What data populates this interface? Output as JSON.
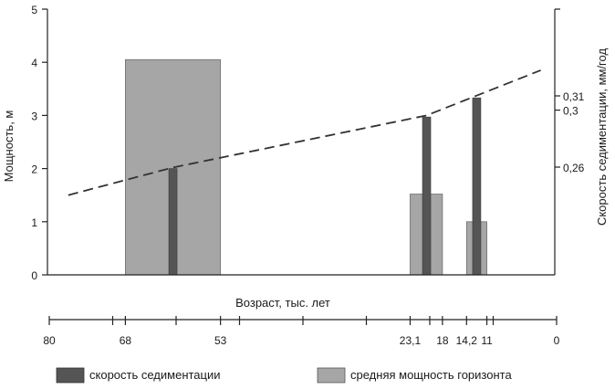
{
  "chart_data": {
    "type": "bar",
    "left_axis": {
      "title": "Мощность, м",
      "ylim": [
        0,
        5
      ],
      "ticks": [
        {
          "value": 0,
          "label": "0"
        },
        {
          "value": 1,
          "label": "1"
        },
        {
          "value": 2,
          "label": "2"
        },
        {
          "value": 3,
          "label": "3"
        },
        {
          "value": 4,
          "label": "4"
        },
        {
          "value": 5,
          "label": "5"
        }
      ]
    },
    "right_axis": {
      "title": "Скорость седиментации, мм/год",
      "ticks": [
        {
          "value": 0.26,
          "label": "0,26"
        },
        {
          "value": 0.3,
          "label": "0,3"
        },
        {
          "value": 0.31,
          "label": "0,31"
        }
      ]
    },
    "x_axis": {
      "title": "Возраст, тыс. лет",
      "reversed": true,
      "xlim": [
        80,
        0
      ],
      "ticks": [
        {
          "value": 80,
          "label": "80"
        },
        {
          "value": 70,
          "label": ""
        },
        {
          "value": 68,
          "label": "68"
        },
        {
          "value": 60,
          "label": ""
        },
        {
          "value": 53,
          "label": "53"
        },
        {
          "value": 50,
          "label": ""
        },
        {
          "value": 40,
          "label": ""
        },
        {
          "value": 30,
          "label": ""
        },
        {
          "value": 23.1,
          "label": "23,1"
        },
        {
          "value": 20,
          "label": ""
        },
        {
          "value": 18,
          "label": "18"
        },
        {
          "value": 14.2,
          "label": "14,2"
        },
        {
          "value": 11,
          "label": "11"
        },
        {
          "value": 10,
          "label": ""
        },
        {
          "value": 0,
          "label": "0"
        }
      ]
    },
    "series": [
      {
        "name": "средняя мощность горизонта",
        "color": "#a6a6a6",
        "bars": [
          {
            "from": 68,
            "to": 53,
            "value": 4.05
          },
          {
            "from": 23.1,
            "to": 18,
            "value": 1.52
          },
          {
            "from": 14.2,
            "to": 11,
            "value": 1.0
          }
        ]
      },
      {
        "name": "скорость седиментации",
        "color": "#555555",
        "bars": [
          {
            "x": 60.5,
            "value": 2.0
          },
          {
            "x": 20.5,
            "value": 2.97
          },
          {
            "x": 12.6,
            "value": 3.33
          }
        ]
      }
    ],
    "trend": {
      "style": "dashed",
      "points": [
        {
          "x": 77,
          "y": 1.5
        },
        {
          "x": 60.5,
          "y": 2.02
        },
        {
          "x": 20.5,
          "y": 3.0
        },
        {
          "x": 2.5,
          "y": 3.85
        }
      ]
    },
    "legend": {
      "position": "bottom",
      "items": [
        {
          "label": "скорость седиментации",
          "color": "#555555"
        },
        {
          "label": "средняя мощность горизонта",
          "color": "#a6a6a6"
        }
      ]
    },
    "grid": false
  }
}
